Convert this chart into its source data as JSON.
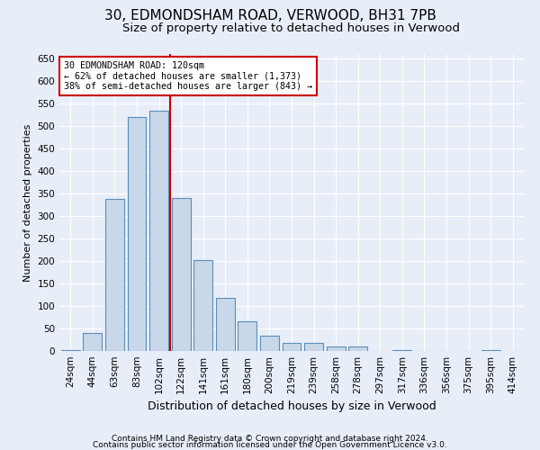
{
  "title1": "30, EDMONDSHAM ROAD, VERWOOD, BH31 7PB",
  "title2": "Size of property relative to detached houses in Verwood",
  "xlabel": "Distribution of detached houses by size in Verwood",
  "ylabel": "Number of detached properties",
  "footer1": "Contains HM Land Registry data © Crown copyright and database right 2024.",
  "footer2": "Contains public sector information licensed under the Open Government Licence v3.0.",
  "bar_labels": [
    "24sqm",
    "44sqm",
    "63sqm",
    "83sqm",
    "102sqm",
    "122sqm",
    "141sqm",
    "161sqm",
    "180sqm",
    "200sqm",
    "219sqm",
    "239sqm",
    "258sqm",
    "278sqm",
    "297sqm",
    "317sqm",
    "336sqm",
    "356sqm",
    "375sqm",
    "395sqm",
    "414sqm"
  ],
  "bar_values": [
    2,
    40,
    338,
    520,
    535,
    340,
    203,
    118,
    67,
    35,
    18,
    18,
    10,
    10,
    0,
    2,
    0,
    0,
    0,
    2,
    0
  ],
  "bar_color": "#c8d8e8",
  "bar_edge_color": "#5b8db8",
  "vline_pos": 4.5,
  "vline_color": "#cc0000",
  "annotation_text": "30 EDMONDSHAM ROAD: 120sqm\n← 62% of detached houses are smaller (1,373)\n38% of semi-detached houses are larger (843) →",
  "annotation_box_color": "#ffffff",
  "annotation_box_edge": "#cc0000",
  "ylim": [
    0,
    660
  ],
  "yticks": [
    0,
    50,
    100,
    150,
    200,
    250,
    300,
    350,
    400,
    450,
    500,
    550,
    600,
    650
  ],
  "background_color": "#e8eef8",
  "plot_bg_color": "#e8eef8",
  "title1_fontsize": 11,
  "title2_fontsize": 9.5,
  "xlabel_fontsize": 9,
  "ylabel_fontsize": 8,
  "tick_fontsize": 7.5,
  "footer_fontsize": 6.5
}
